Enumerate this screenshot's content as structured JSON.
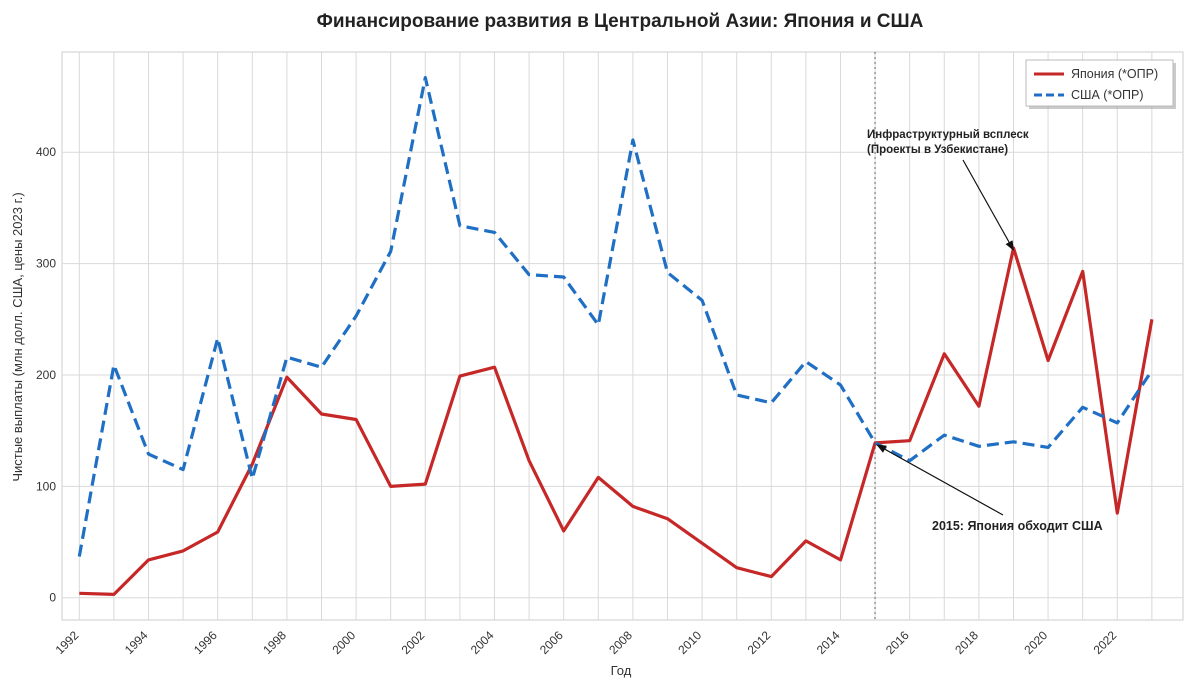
{
  "chart_data": {
    "type": "line",
    "title": "Финансирование развития в Центральной Азии: Япония и США",
    "xlabel": "Год",
    "ylabel": "Чистые выплаты (млн долл. США, цены 2023 г.)",
    "x": [
      1992,
      1993,
      1994,
      1995,
      1996,
      1997,
      1998,
      1999,
      2000,
      2001,
      2002,
      2003,
      2004,
      2005,
      2006,
      2007,
      2008,
      2009,
      2010,
      2011,
      2012,
      2013,
      2014,
      2015,
      2016,
      2017,
      2018,
      2019,
      2020,
      2021,
      2022,
      2023
    ],
    "xlim": [
      1991.5,
      2023.9
    ],
    "ylim": [
      -20,
      490
    ],
    "x_ticks": [
      1992,
      1994,
      1996,
      1998,
      2000,
      2002,
      2004,
      2006,
      2008,
      2010,
      2012,
      2014,
      2016,
      2018,
      2020,
      2022
    ],
    "y_ticks": [
      0,
      100,
      200,
      300,
      400
    ],
    "grid": true,
    "legend_position": "top-right",
    "series": [
      {
        "name": "Япония (*ОПР)",
        "color": "#c62828",
        "style": "solid",
        "values": [
          4,
          3,
          34,
          42,
          59,
          120,
          198,
          165,
          160,
          100,
          102,
          199,
          207,
          123,
          60,
          108,
          82,
          71,
          49,
          27,
          19,
          51,
          34,
          139,
          141,
          219,
          172,
          314,
          213,
          293,
          76,
          250
        ]
      },
      {
        "name": "США (*ОПР)",
        "color": "#1f6fc4",
        "style": "dashed",
        "values": [
          37,
          209,
          129,
          115,
          233,
          107,
          216,
          207,
          253,
          311,
          467,
          334,
          328,
          290,
          288,
          245,
          411,
          292,
          267,
          182,
          175,
          212,
          191,
          139,
          123,
          146,
          136,
          140,
          135,
          171,
          157,
          204
        ]
      }
    ],
    "vline": {
      "x": 2015,
      "color": "#999999",
      "style": "dotted"
    },
    "annotations": [
      {
        "lines": [
          "Инфраструктурный всплеск",
          "(Проекты в Узбекистане)"
        ],
        "target_x": 2019,
        "target_y": 314
      },
      {
        "lines": [
          "2015: Япония обходит США"
        ],
        "target_x": 2015,
        "target_y": 139
      }
    ]
  }
}
